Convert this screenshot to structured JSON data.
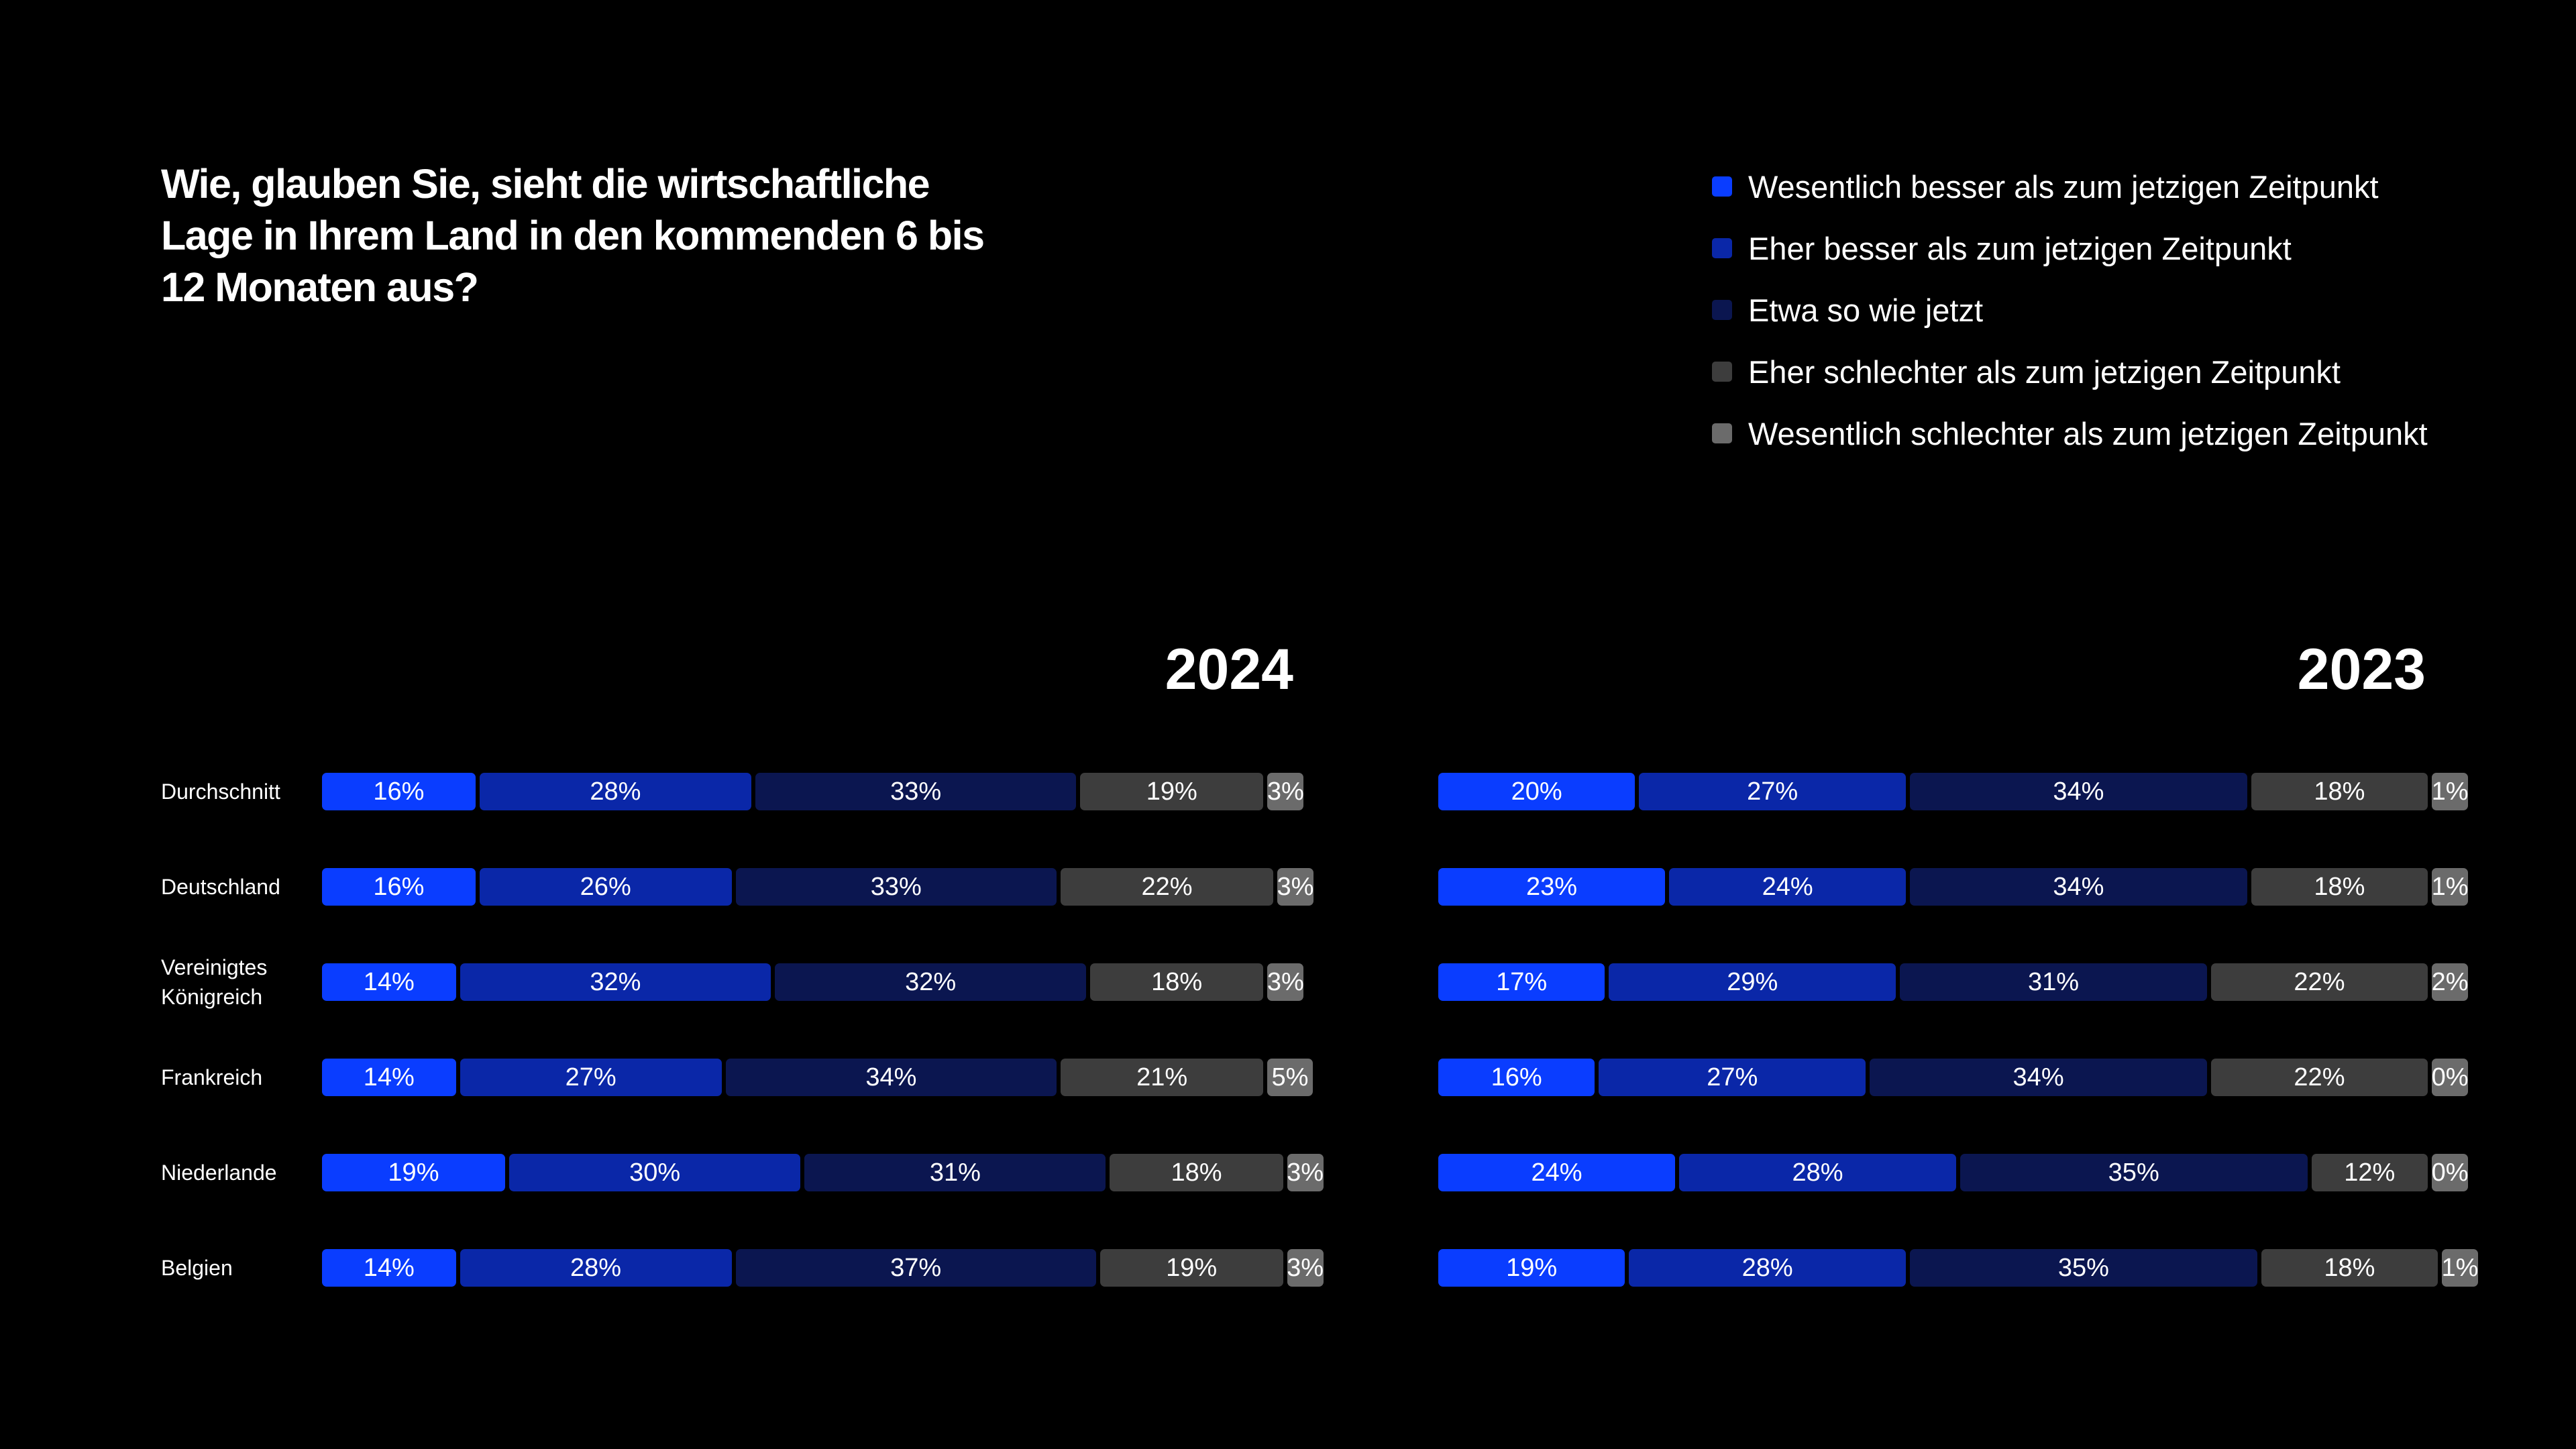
{
  "title": "Wie, glauben Sie, sieht die wirtschaftliche Lage in Ihrem Land in den kommenden 6 bis 12 Monaten aus?",
  "legend": [
    {
      "label": "Wesentlich besser als zum jetzigen Zeitpunkt",
      "color": "#0a3dff"
    },
    {
      "label": "Eher besser als zum jetzigen Zeitpunkt",
      "color": "#0a27a8"
    },
    {
      "label": "Etwa so wie jetzt",
      "color": "#0b1650"
    },
    {
      "label": "Eher schlechter als zum jetzigen Zeitpunkt",
      "color": "#3d3d3d"
    },
    {
      "label": "Wesentlich schlechter als zum jetzigen Zeitpunkt",
      "color": "#6b6b6b"
    }
  ],
  "chart_data": [
    {
      "type": "bar",
      "orientation": "horizontal-stacked",
      "title": "2024",
      "categories": [
        "Durchschnitt",
        "Deutschland",
        "Vereinigtes Königreich",
        "Frankreich",
        "Niederlande",
        "Belgien"
      ],
      "series": [
        {
          "name": "Wesentlich besser als zum jetzigen Zeitpunkt",
          "values": [
            16,
            16,
            14,
            14,
            19,
            14
          ]
        },
        {
          "name": "Eher besser als zum jetzigen Zeitpunkt",
          "values": [
            28,
            26,
            32,
            27,
            30,
            28
          ]
        },
        {
          "name": "Etwa so wie jetzt",
          "values": [
            33,
            33,
            32,
            34,
            31,
            37
          ]
        },
        {
          "name": "Eher schlechter als zum jetzigen Zeitpunkt",
          "values": [
            19,
            22,
            18,
            21,
            18,
            19
          ]
        },
        {
          "name": "Wesentlich schlechter als zum jetzigen Zeitpunkt",
          "values": [
            3,
            3,
            3,
            5,
            3,
            3
          ]
        }
      ],
      "value_suffix": "%"
    },
    {
      "type": "bar",
      "orientation": "horizontal-stacked",
      "title": "2023",
      "categories": [
        "Durchschnitt",
        "Deutschland",
        "Vereinigtes Königreich",
        "Frankreich",
        "Niederlande",
        "Belgien"
      ],
      "series": [
        {
          "name": "Wesentlich besser als zum jetzigen Zeitpunkt",
          "values": [
            20,
            23,
            17,
            16,
            24,
            19
          ]
        },
        {
          "name": "Eher besser als zum jetzigen Zeitpunkt",
          "values": [
            27,
            24,
            29,
            27,
            28,
            28
          ]
        },
        {
          "name": "Etwa so wie jetzt",
          "values": [
            34,
            34,
            31,
            34,
            35,
            35
          ]
        },
        {
          "name": "Eher schlechter als zum jetzigen Zeitpunkt",
          "values": [
            18,
            18,
            22,
            22,
            12,
            18
          ]
        },
        {
          "name": "Wesentlich schlechter als zum jetzigen Zeitpunkt",
          "values": [
            1,
            1,
            2,
            0,
            0,
            1
          ]
        }
      ],
      "value_suffix": "%"
    }
  ]
}
